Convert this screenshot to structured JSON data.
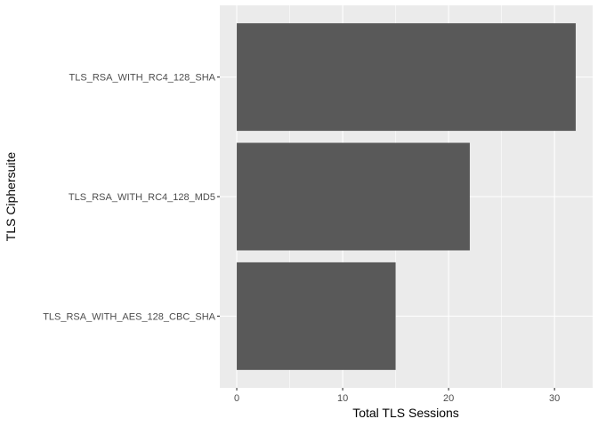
{
  "chart_data": {
    "type": "bar",
    "orientation": "horizontal",
    "categories": [
      "TLS_RSA_WITH_RC4_128_SHA",
      "TLS_RSA_WITH_RC4_128_MD5",
      "TLS_RSA_WITH_AES_128_CBC_SHA"
    ],
    "values": [
      32,
      22,
      15
    ],
    "xlabel": "Total TLS Sessions",
    "ylabel": "TLS Ciphersuite",
    "xlim": [
      -1.6,
      33.6
    ],
    "xticks": [
      0,
      10,
      20,
      30
    ],
    "grid": true,
    "colors": {
      "panel": "#ebebeb",
      "grid": "#ffffff",
      "bar": "#595959"
    }
  }
}
